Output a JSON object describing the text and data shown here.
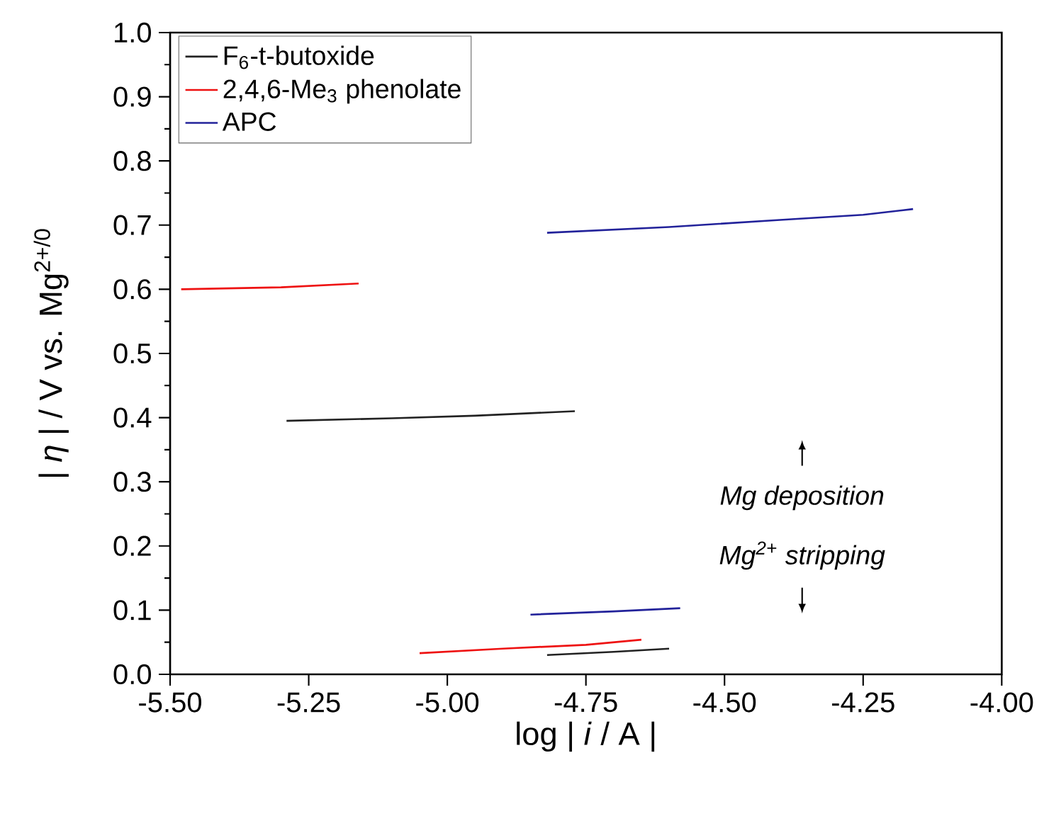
{
  "chart_data": {
    "type": "line",
    "xlabel": "log | *i* / A |",
    "ylabel": "| *η* |  /  V vs. Mg$^{2+/0}$",
    "xlim": [
      -5.5,
      -4.0
    ],
    "ylim": [
      0.0,
      1.0
    ],
    "xticks": [
      {
        "value": -5.5,
        "label": "-5.50"
      },
      {
        "value": -5.25,
        "label": "-5.25"
      },
      {
        "value": -5.0,
        "label": "-5.00"
      },
      {
        "value": -4.75,
        "label": "-4.75"
      },
      {
        "value": -4.5,
        "label": "-4.50"
      },
      {
        "value": -4.25,
        "label": "-4.25"
      },
      {
        "value": -4.0,
        "label": "-4.00"
      }
    ],
    "yticks": [
      {
        "value": 0.0,
        "label": "0.0"
      },
      {
        "value": 0.1,
        "label": "0.1"
      },
      {
        "value": 0.2,
        "label": "0.2"
      },
      {
        "value": 0.3,
        "label": "0.3"
      },
      {
        "value": 0.4,
        "label": "0.4"
      },
      {
        "value": 0.5,
        "label": "0.5"
      },
      {
        "value": 0.6,
        "label": "0.6"
      },
      {
        "value": 0.7,
        "label": "0.7"
      },
      {
        "value": 0.8,
        "label": "0.8"
      },
      {
        "value": 0.9,
        "label": "0.9"
      },
      {
        "value": 1.0,
        "label": "1.0"
      }
    ],
    "grid": false,
    "legend": "top left",
    "marker": "none",
    "line_style": "solid",
    "series": [
      {
        "name": "F$_{6}$-t-butoxide",
        "color": "#222222",
        "x": [
          -5.29,
          -5.1,
          -4.95,
          -4.77,
          null,
          -4.82,
          -4.7,
          -4.6
        ],
        "values": [
          0.395,
          0.399,
          0.403,
          0.41,
          null,
          0.03,
          0.035,
          0.04
        ]
      },
      {
        "name": "2,4,6-Me$_{3}$ phenolate",
        "color": "#ee1111",
        "x": [
          -5.48,
          -5.3,
          -5.16,
          null,
          -5.05,
          -4.9,
          -4.75,
          -4.65
        ],
        "values": [
          0.6,
          0.603,
          0.609,
          null,
          0.033,
          0.04,
          0.046,
          0.054
        ]
      },
      {
        "name": "APC",
        "color": "#22229a",
        "x": [
          -4.82,
          -4.6,
          -4.4,
          -4.25,
          -4.16,
          null,
          -4.85,
          -4.7,
          -4.58
        ],
        "values": [
          0.688,
          0.697,
          0.708,
          0.716,
          0.725,
          null,
          0.093,
          0.098,
          0.103
        ]
      }
    ],
    "annotations": [
      "Mg deposition",
      "Mg$^{2+}$ stripping"
    ]
  }
}
